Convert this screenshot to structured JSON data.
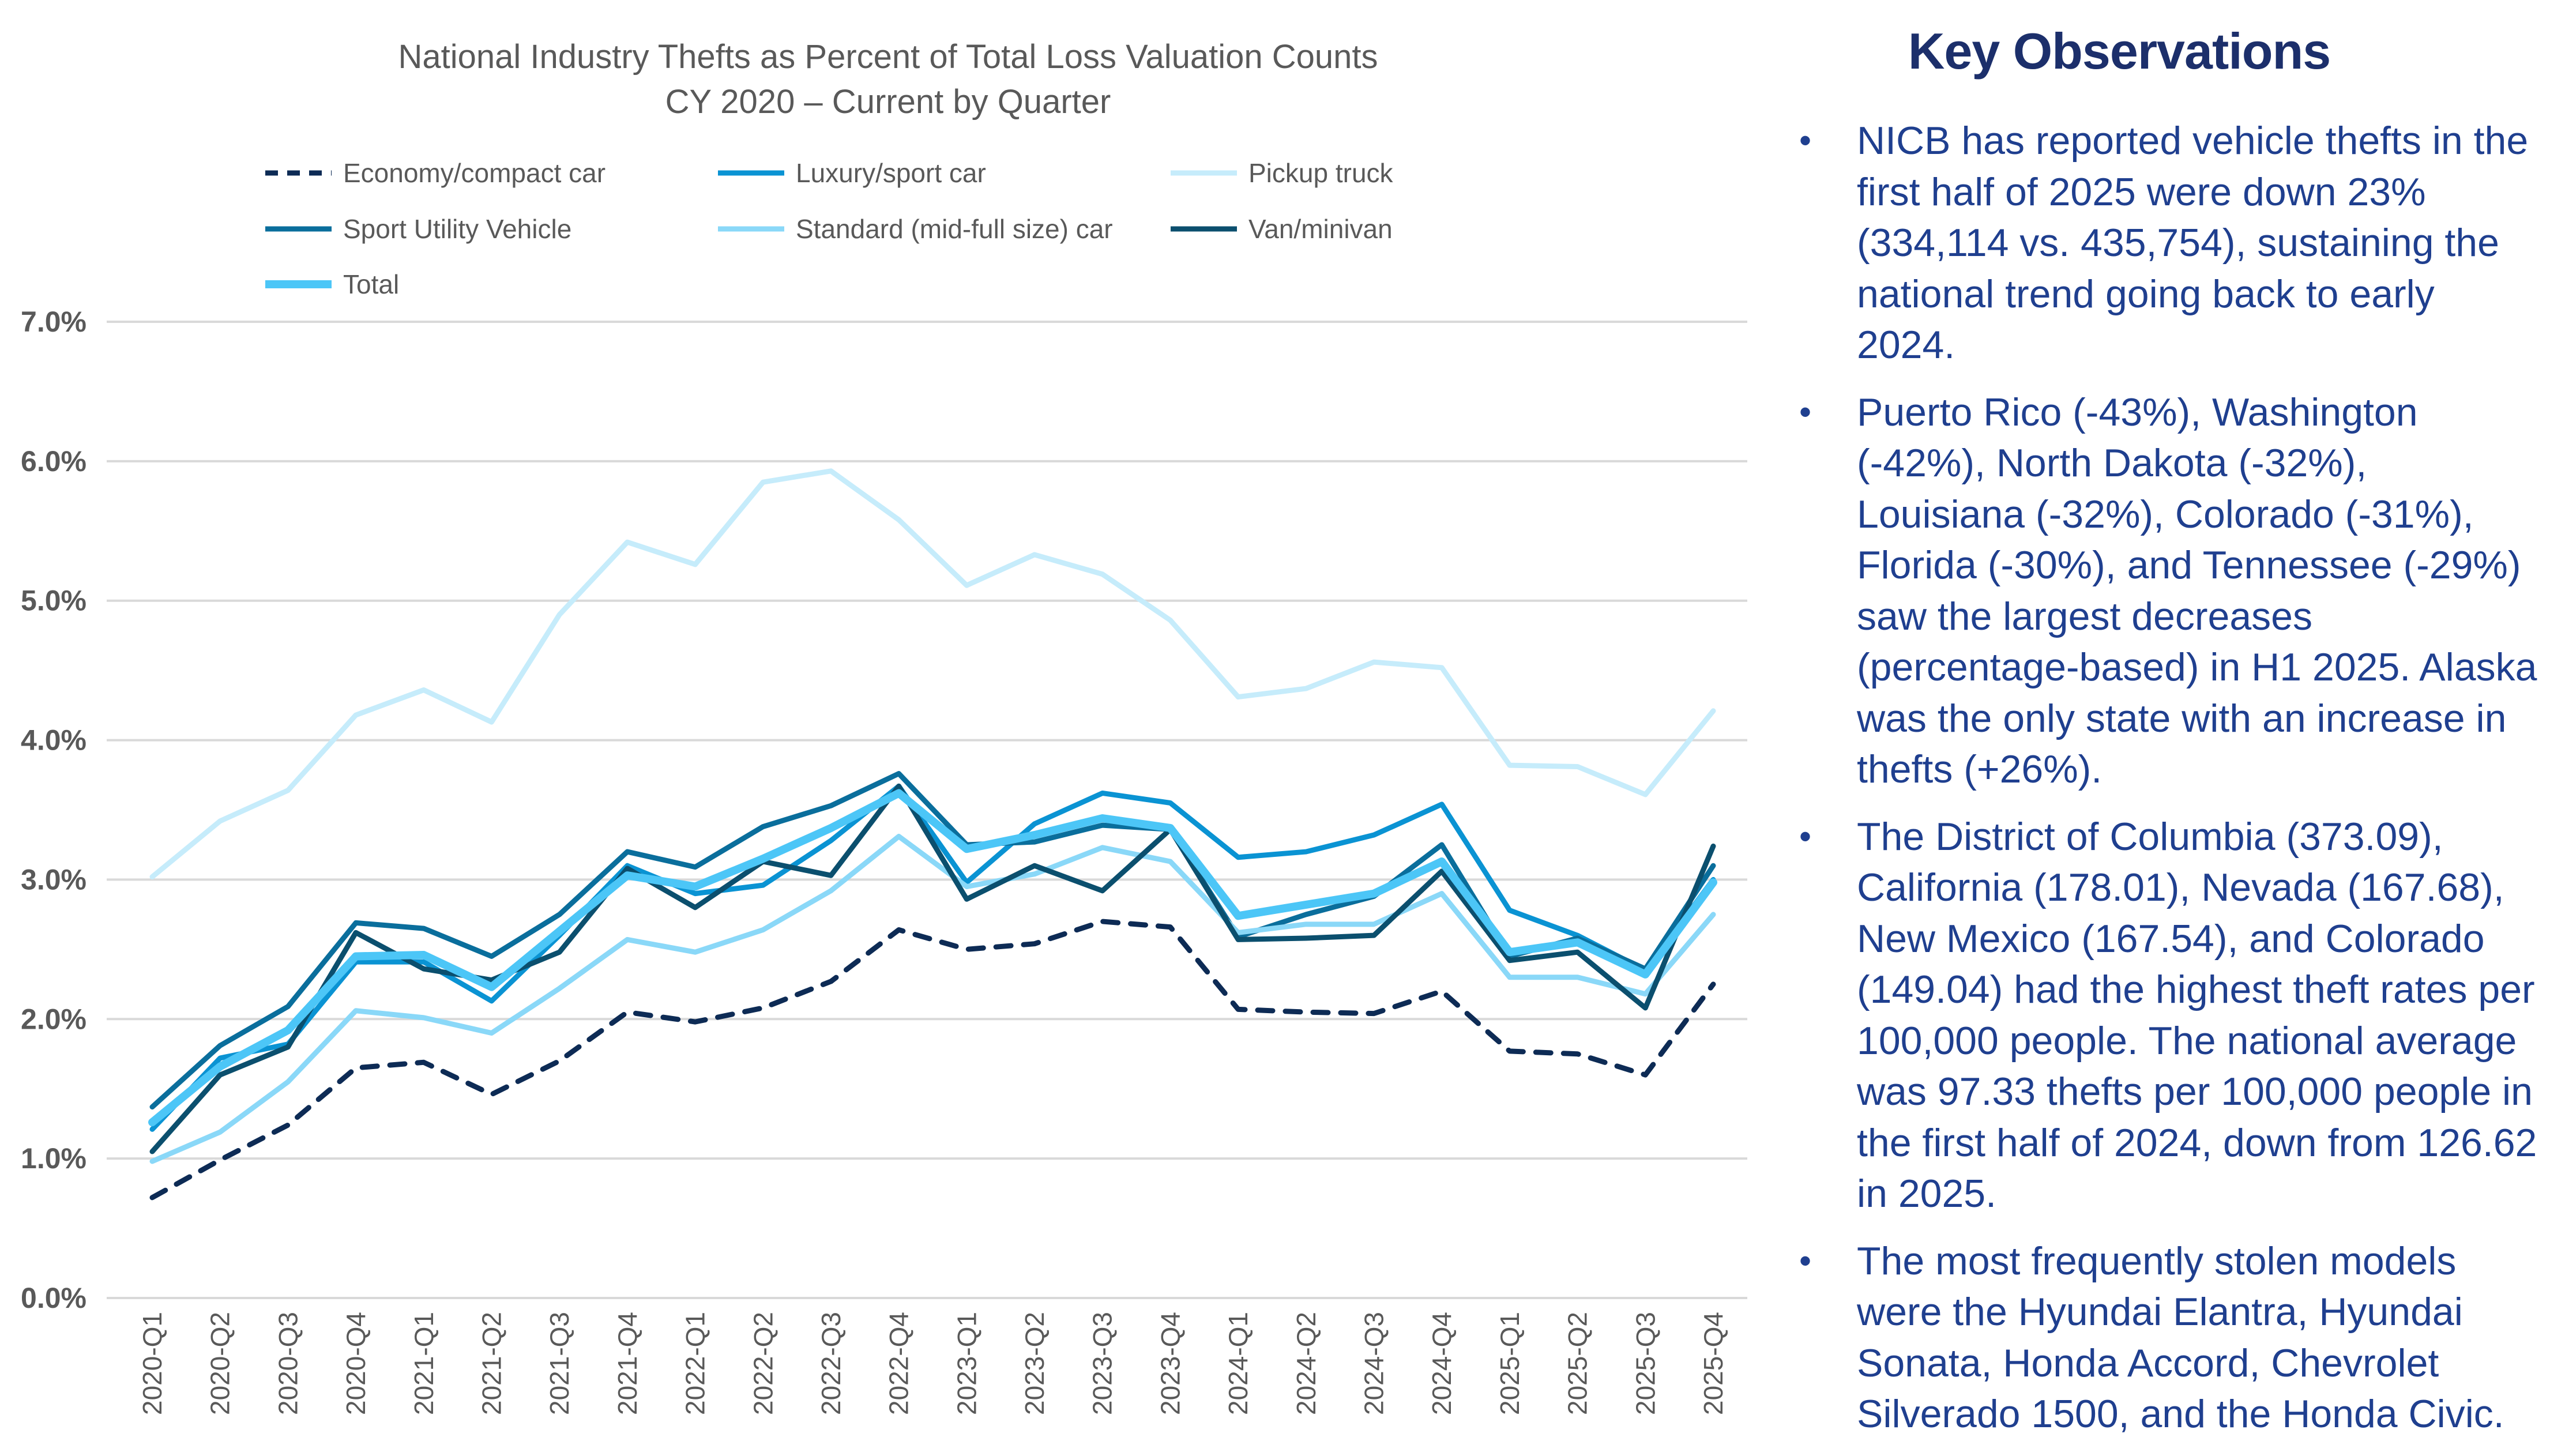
{
  "chart_data": {
    "type": "line",
    "title": "National Industry Thefts as Percent of Total Loss Valuation Counts",
    "subtitle": "CY 2020 – Current by Quarter",
    "xlabel": "",
    "ylabel": "",
    "ylim": [
      0,
      7
    ],
    "yticks": [
      "0.0%",
      "1.0%",
      "2.0%",
      "3.0%",
      "4.0%",
      "5.0%",
      "6.0%",
      "7.0%"
    ],
    "grid": true,
    "legend": "top",
    "categories": [
      "2020-Q1",
      "2020-Q2",
      "2020-Q3",
      "2020-Q4",
      "2021-Q1",
      "2021-Q2",
      "2021-Q3",
      "2021-Q4",
      "2022-Q1",
      "2022-Q2",
      "2022-Q3",
      "2022-Q4",
      "2023-Q1",
      "2023-Q2",
      "2023-Q3",
      "2023-Q4",
      "2024-Q1",
      "2024-Q2",
      "2024-Q3",
      "2024-Q4",
      "2025-Q1",
      "2025-Q2",
      "2025-Q3",
      "2025-Q4"
    ],
    "series": [
      {
        "name": "Economy/compact car",
        "color": "#0d2b55",
        "dashed": true,
        "values": [
          0.72,
          0.99,
          1.24,
          1.65,
          1.69,
          1.46,
          1.7,
          2.05,
          1.98,
          2.08,
          2.27,
          2.64,
          2.5,
          2.54,
          2.7,
          2.66,
          2.07,
          2.05,
          2.04,
          2.2,
          1.77,
          1.75,
          1.6,
          2.25
        ]
      },
      {
        "name": "Luxury/sport car",
        "color": "#0a93d3",
        "values": [
          1.21,
          1.72,
          1.82,
          2.41,
          2.41,
          2.13,
          2.6,
          3.1,
          2.9,
          2.96,
          3.28,
          3.67,
          2.98,
          3.4,
          3.62,
          3.55,
          3.16,
          3.2,
          3.32,
          3.54,
          2.78,
          2.6,
          2.35,
          3.0
        ]
      },
      {
        "name": "Pickup truck",
        "color": "#c6ecfb",
        "values": [
          3.02,
          3.42,
          3.64,
          4.18,
          4.36,
          4.13,
          4.9,
          5.42,
          5.26,
          5.85,
          5.93,
          5.58,
          5.11,
          5.33,
          5.19,
          4.86,
          4.31,
          4.37,
          4.56,
          4.52,
          3.82,
          3.81,
          3.61,
          4.21
        ]
      },
      {
        "name": "Sport Utility Vehicle",
        "color": "#0a6e9c",
        "values": [
          1.37,
          1.81,
          2.09,
          2.69,
          2.65,
          2.45,
          2.75,
          3.2,
          3.09,
          3.38,
          3.53,
          3.76,
          3.25,
          3.27,
          3.39,
          3.36,
          2.59,
          2.75,
          2.88,
          3.25,
          2.45,
          2.58,
          2.36,
          3.1
        ]
      },
      {
        "name": "Standard (mid-full size) car",
        "color": "#8ad8f8",
        "values": [
          0.98,
          1.19,
          1.55,
          2.06,
          2.01,
          1.9,
          2.22,
          2.57,
          2.48,
          2.64,
          2.92,
          3.31,
          2.95,
          3.04,
          3.23,
          3.13,
          2.62,
          2.68,
          2.68,
          2.9,
          2.3,
          2.3,
          2.18,
          2.75
        ]
      },
      {
        "name": "Van/minivan",
        "color": "#0b4f6e",
        "values": [
          1.05,
          1.6,
          1.8,
          2.62,
          2.36,
          2.28,
          2.48,
          3.08,
          2.8,
          3.13,
          3.03,
          3.67,
          2.86,
          3.1,
          2.92,
          3.36,
          2.57,
          2.58,
          2.6,
          3.06,
          2.42,
          2.48,
          2.08,
          3.24
        ]
      },
      {
        "name": "Total",
        "color": "#4cc6f7",
        "thick": true,
        "values": [
          1.26,
          1.66,
          1.92,
          2.45,
          2.46,
          2.23,
          2.63,
          3.03,
          2.95,
          3.15,
          3.37,
          3.62,
          3.22,
          3.32,
          3.44,
          3.37,
          2.74,
          2.82,
          2.9,
          3.13,
          2.48,
          2.55,
          2.32,
          2.98
        ]
      }
    ]
  },
  "panel": {
    "heading": "Key Observations",
    "bullets": [
      "NICB has reported vehicle thefts in the first half of 2025 were down 23% (334,114 vs. 435,754), sustaining the national trend going back to early 2024.",
      "Puerto Rico (-43%), Washington (-42%), North Dakota (-32%), Louisiana (-32%), Colorado (-31%), Florida (-30%), and Tennessee (-29%) saw the largest decreases (percentage-based) in H1 2025. Alaska was the only state with an increase in thefts (+26%).",
      "The District of Columbia (373.09), California (178.01), Nevada (167.68), New Mexico (167.54), and Colorado (149.04) had the highest theft rates per 100,000 people.  The national average was 97.33 thefts per 100,000 people in the first half of 2024, down from 126.62 in 2025.",
      "The most frequently stolen models were the Hyundai Elantra, Hyundai Sonata, Honda Accord, Chevrolet Silverado 1500, and the Honda Civic."
    ]
  }
}
